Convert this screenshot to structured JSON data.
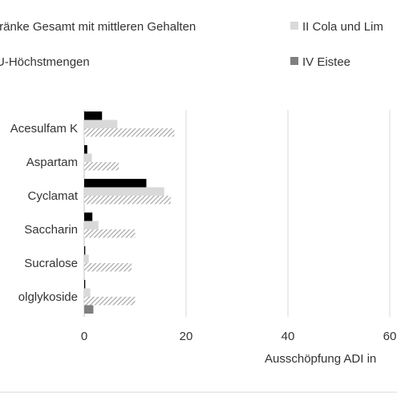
{
  "chart_data": {
    "type": "bar",
    "orientation": "horizontal",
    "categories": [
      "Acesulfam K",
      "Aspartam",
      "Cyclamat",
      "Saccharin",
      "Sucralose",
      "olglykoside"
    ],
    "series": [
      {
        "name": "tränke Gesamt mit mittleren Gehalten",
        "color": "#000000",
        "pattern": "solid",
        "values": [
          3.5,
          0.6,
          12.2,
          1.6,
          0.2,
          0.2
        ]
      },
      {
        "name": "II Cola und Lim",
        "color": "#d9d9d9",
        "pattern": "solid",
        "values": [
          6.5,
          1.5,
          15.7,
          2.8,
          0.9,
          1.2
        ]
      },
      {
        "name": "U-Höchstmengen",
        "color": "#a6a6a6",
        "pattern": "hatched",
        "values": [
          17.7,
          6.8,
          17.0,
          10.0,
          9.3,
          10.0
        ]
      },
      {
        "name": "IV Eistee",
        "color": "#7f7f7f",
        "pattern": "solid",
        "values": [
          0,
          0,
          0,
          0,
          0,
          1.8
        ]
      }
    ],
    "x_ticks": [
      "0",
      "20",
      "40",
      "60"
    ],
    "xlabel": "Ausschöpfung ADI in",
    "xlim": [
      0,
      60
    ],
    "grid": "vertical",
    "legend_position": "top"
  }
}
